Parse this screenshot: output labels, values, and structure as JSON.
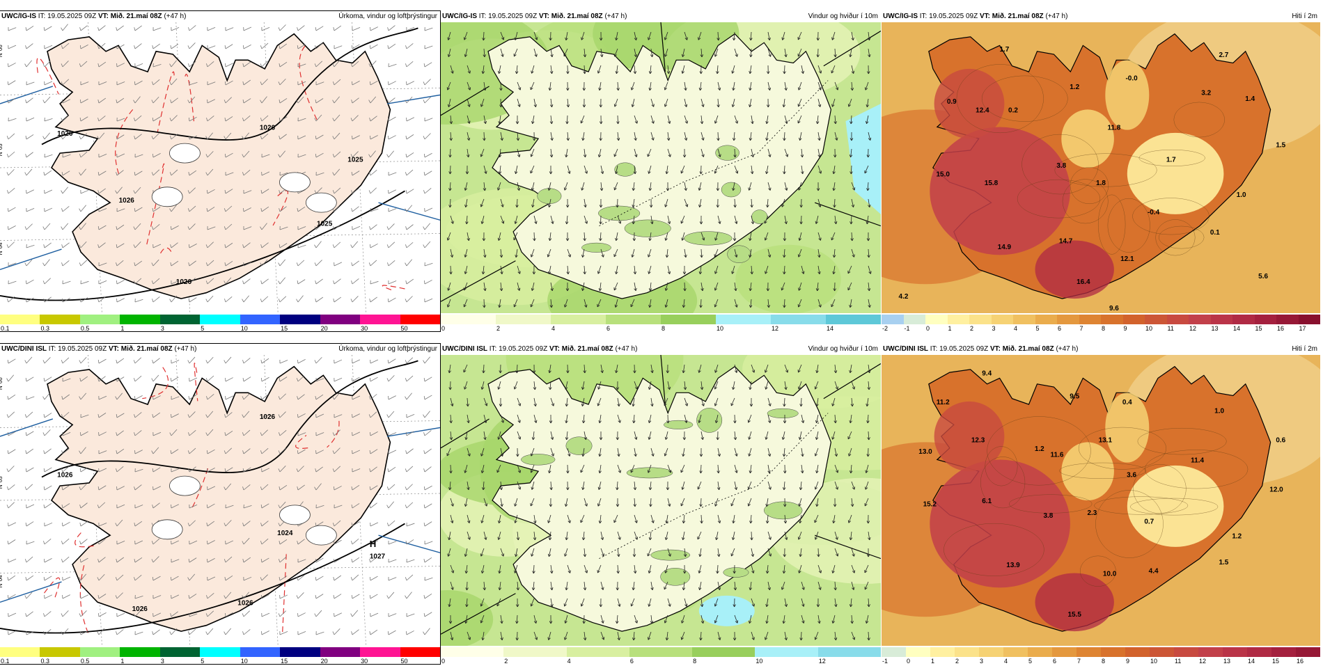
{
  "rows": [
    {
      "panels": [
        {
          "model": "UWC/IG-IS",
          "it": "IT: 19.05.2025 09Z",
          "vt_label": "VT:",
          "vt_value": "Mið. 21.maí 08Z",
          "lead": "(+47 h)",
          "title": "Úrkoma, vindur og loftþrýstingur",
          "kind": "precip",
          "pressure_labels": [
            "1026",
            "1026",
            "1026",
            "1025",
            "1025",
            "1026"
          ],
          "scale_ticks": [
            "0.1",
            "0.3",
            "0.5",
            "1",
            "3",
            "5",
            "10",
            "15",
            "20",
            "30",
            "50"
          ],
          "scale_colors": [
            "#ffff80",
            "#c8c800",
            "#a0f080",
            "#00b400",
            "#006432",
            "#00ffff",
            "#3264ff",
            "#000080",
            "#800080",
            "#ff1493",
            "#ff0000"
          ]
        },
        {
          "model": "UWC/IG-IS",
          "it": "IT: 19.05.2025 09Z",
          "vt_label": "VT:",
          "vt_value": "Mið. 21.maí 08Z",
          "lead": "(+47 h)",
          "title": "Vindur og hviður í 10m",
          "kind": "wind",
          "scale_ticks": [
            "0",
            "2",
            "4",
            "6",
            "8",
            "10",
            "12",
            "14"
          ],
          "scale_colors": [
            "#ffffe8",
            "#f0f8c8",
            "#d8efa0",
            "#b8e07c",
            "#98cf5c",
            "#a8f0f8",
            "#88dcea",
            "#5ec8d8"
          ]
        },
        {
          "model": "UWC/IG-IS",
          "it": "IT: 19.05.2025 09Z",
          "vt_label": "VT:",
          "vt_value": "Mið. 21.maí 08Z",
          "lead": "(+47 h)",
          "title": "Hiti í 2m",
          "kind": "temp",
          "temp_labels": [
            "1.7",
            "2.7",
            "0.9",
            "12.4",
            "0.2",
            "1.2",
            "-0.0",
            "3.2",
            "1.4",
            "11.8",
            "1.5",
            "3.8",
            "1.7",
            "15.0",
            "15.8",
            "1.8",
            "1.0",
            "-0.4",
            "0.1",
            "14.9",
            "14.7",
            "12.1",
            "16.4",
            "5.6",
            "4.2",
            "9.6"
          ],
          "scale_ticks": [
            "-2",
            "-1",
            "0",
            "1",
            "2",
            "3",
            "4",
            "5",
            "6",
            "7",
            "8",
            "9",
            "10",
            "11",
            "12",
            "13",
            "14",
            "15",
            "16",
            "17"
          ],
          "scale_colors": [
            "#a8d0f0",
            "#d8ecd8",
            "#ffffc0",
            "#fff0a0",
            "#fbe28a",
            "#f6d274",
            "#f0c060",
            "#eaac4c",
            "#e4983e",
            "#de8432",
            "#d8722c",
            "#d2622c",
            "#cc5636",
            "#c84a40",
            "#c2404a",
            "#ba3448",
            "#b02a44",
            "#a4203e",
            "#961836",
            "#88102e"
          ]
        }
      ]
    },
    {
      "panels": [
        {
          "model": "UWC/DINI ISL",
          "it": "IT: 19.05.2025 09Z",
          "vt_label": "VT:",
          "vt_value": "Mið. 21.maí 08Z",
          "lead": "(+47 h)",
          "title": "Úrkoma, vindur og loftþrýstingur",
          "kind": "precip",
          "pressure_labels": [
            "1026",
            "1026",
            "1024",
            "1027",
            "1026",
            "1026"
          ],
          "high_label": "H",
          "scale_ticks": [
            "0.1",
            "0.3",
            "0.5",
            "1",
            "3",
            "5",
            "10",
            "15",
            "20",
            "30",
            "50"
          ],
          "scale_colors": [
            "#ffff80",
            "#c8c800",
            "#a0f080",
            "#00b400",
            "#006432",
            "#00ffff",
            "#3264ff",
            "#000080",
            "#800080",
            "#ff1493",
            "#ff0000"
          ]
        },
        {
          "model": "UWC/DINI ISL",
          "it": "IT: 19.05.2025 09Z",
          "vt_label": "VT:",
          "vt_value": "Mið. 21.maí 08Z",
          "lead": "(+47 h)",
          "title": "Vindur og hviður í 10m",
          "kind": "wind",
          "scale_ticks": [
            "0",
            "2",
            "4",
            "6",
            "8",
            "10",
            "12"
          ],
          "scale_colors": [
            "#ffffe8",
            "#f0f8c8",
            "#d8efa0",
            "#b8e07c",
            "#98cf5c",
            "#a8f0f8",
            "#88dcea"
          ]
        },
        {
          "model": "UWC/DINI ISL",
          "it": "IT: 19.05.2025 09Z",
          "vt_label": "VT:",
          "vt_value": "Mið. 21.maí 08Z",
          "lead": "(+47 h)",
          "title": "Hiti í 2m",
          "kind": "temp",
          "temp_labels": [
            "9.4",
            "11.2",
            "9.5",
            "0.4",
            "1.0",
            "12.3",
            "1.2",
            "13.1",
            "11.6",
            "11.4",
            "0.6",
            "13.0",
            "3.6",
            "12.0",
            "15.2",
            "6.1",
            "3.8",
            "2.3",
            "0.7",
            "1.2",
            "13.9",
            "10.0",
            "4.4",
            "1.5",
            "15.5"
          ],
          "scale_ticks": [
            "-1",
            "0",
            "1",
            "2",
            "3",
            "4",
            "5",
            "6",
            "7",
            "8",
            "9",
            "10",
            "11",
            "12",
            "13",
            "14",
            "15",
            "16"
          ],
          "scale_colors": [
            "#d8ecd8",
            "#ffffc0",
            "#fff0a0",
            "#fbe28a",
            "#f6d274",
            "#f0c060",
            "#eaac4c",
            "#e4983e",
            "#de8432",
            "#d8722c",
            "#d2622c",
            "#cc5636",
            "#c84a40",
            "#c2404a",
            "#ba3448",
            "#b02a44",
            "#a4203e",
            "#961836"
          ]
        }
      ]
    }
  ],
  "grid_labels": [
    "N°66",
    "N°65",
    "N°64"
  ]
}
